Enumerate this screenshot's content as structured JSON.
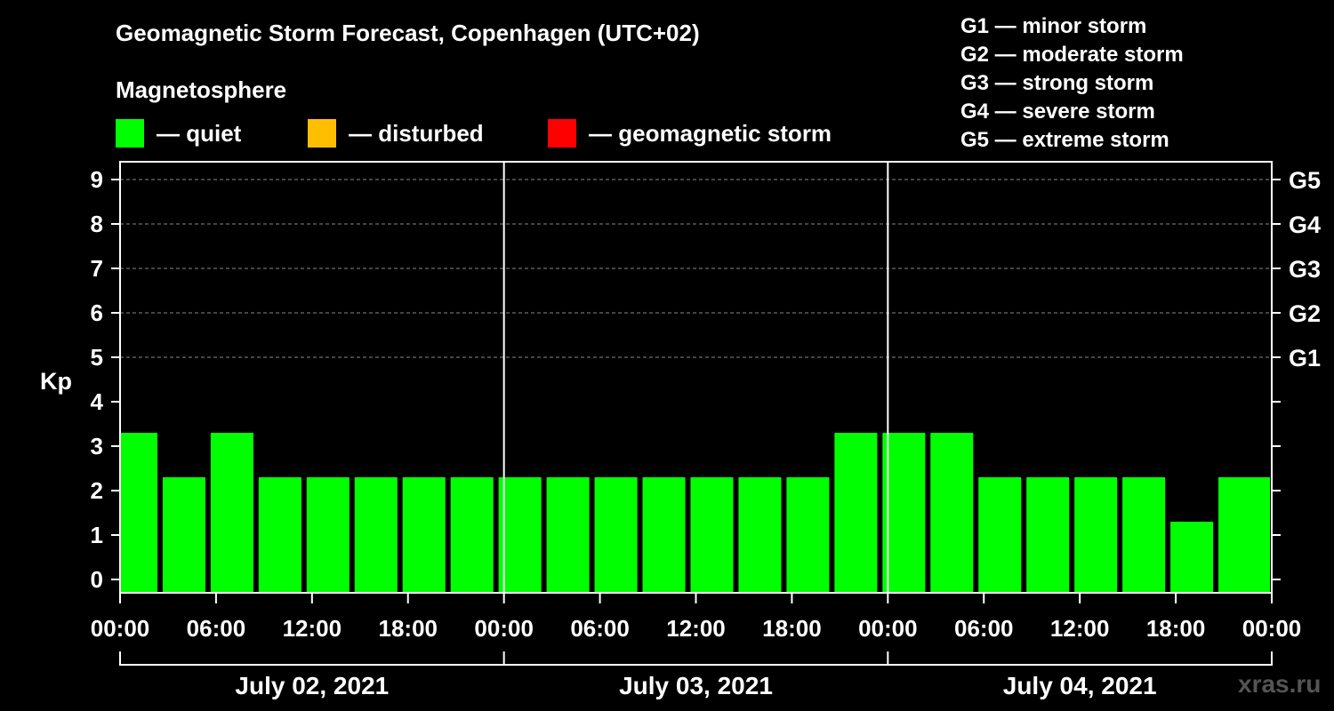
{
  "header": {
    "title": "Geomagnetic Storm Forecast, Copenhagen (UTC+02)",
    "magnetosphere_label": "Magnetosphere"
  },
  "legend": [
    {
      "label": "— quiet",
      "color": "#00ff00"
    },
    {
      "label": "— disturbed",
      "color": "#ffbf00"
    },
    {
      "label": "— geomagnetic storm",
      "color": "#ff0000"
    }
  ],
  "storm_levels": [
    "G1 — minor storm",
    "G2 — moderate storm",
    "G3 — strong storm",
    "G4 — severe storm",
    "G5 — extreme storm"
  ],
  "watermark": "xras.ru",
  "chart_data": {
    "type": "bar",
    "title": "Geomagnetic Storm Forecast, Copenhagen (UTC+02)",
    "ylabel": "Kp",
    "ylim": [
      0,
      9
    ],
    "yticks": [
      "0",
      "1",
      "2",
      "3",
      "4",
      "5",
      "6",
      "7",
      "8",
      "9"
    ],
    "right_ticks": [
      {
        "kp": 5,
        "label": "G1"
      },
      {
        "kp": 6,
        "label": "G2"
      },
      {
        "kp": 7,
        "label": "G3"
      },
      {
        "kp": 8,
        "label": "G4"
      },
      {
        "kp": 9,
        "label": "G5"
      }
    ],
    "x_range_hours": [
      0,
      72
    ],
    "xtick_labels": [
      "00:00",
      "06:00",
      "12:00",
      "18:00",
      "00:00",
      "06:00",
      "12:00",
      "18:00",
      "00:00",
      "06:00",
      "12:00",
      "18:00",
      "00:00"
    ],
    "days": [
      "July 02, 2021",
      "July 03, 2021",
      "July 04, 2021"
    ],
    "bar_hours": [
      1,
      4,
      7,
      10,
      13,
      16,
      19,
      22,
      25,
      28,
      31,
      34,
      37,
      40,
      43,
      46,
      49,
      52,
      55,
      58,
      61,
      64,
      67,
      70,
      72.5
    ],
    "values": [
      3,
      2,
      3,
      2,
      2,
      2,
      2,
      2,
      2,
      2,
      2,
      2,
      2,
      2,
      2,
      3,
      3,
      3,
      2,
      2,
      2,
      2,
      1,
      2,
      2
    ],
    "colors": {
      "quiet": "#00ff00",
      "disturbed": "#ffbf00",
      "storm": "#ff0000"
    }
  }
}
